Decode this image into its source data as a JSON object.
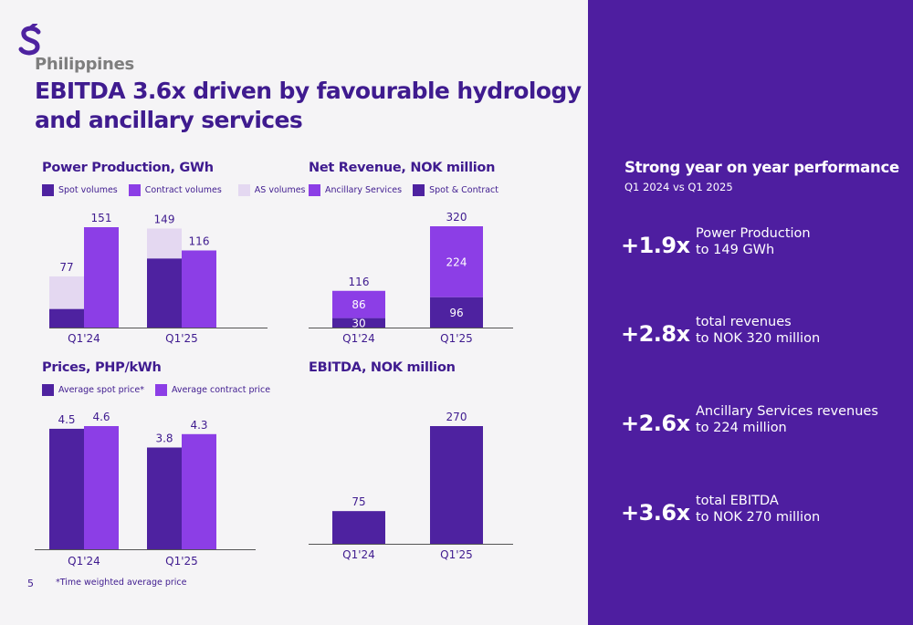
{
  "colors": {
    "dark_purple": "#4e22a0",
    "mid_purple": "#8c3ee6",
    "light_lavender": "#e4d8f1",
    "side_panel": "#4e1ea0",
    "text_dark": "#3f1b8f",
    "region_grey": "#7e7e7e"
  },
  "header": {
    "logo_icon": "swirl-s-logo",
    "region": "Philippines",
    "title": "EBITDA 3.6x driven by favourable hydrology and ancillary services"
  },
  "footer": {
    "page_number": "5",
    "footnote": "*Time weighted average price"
  },
  "side_panel": {
    "title": "Strong year on year performance",
    "subtitle": "Q1 2024 vs Q1 2025",
    "metrics": [
      {
        "multiplier": "+1.9x",
        "line1": "Power Production",
        "line2": "to 149 GWh"
      },
      {
        "multiplier": "+2.8x",
        "line1": "total revenues",
        "line2": "to NOK 320 million"
      },
      {
        "multiplier": "+2.6x",
        "line1": "Ancillary Services revenues",
        "line2": "to 224 million"
      },
      {
        "multiplier": "+3.6x",
        "line1": "total EBITDA",
        "line2": "to NOK 270 million"
      }
    ]
  },
  "chart_data": [
    {
      "id": "power",
      "type": "bar",
      "title": "Power Production, GWh",
      "categories": [
        "Q1'24",
        "Q1'25"
      ],
      "legend": [
        "Spot volumes",
        "Contract volumes",
        "AS volumes"
      ],
      "groups": [
        [
          {
            "stack": [
              {
                "series": 0,
                "value": 28
              },
              {
                "series": 2,
                "value": 49
              }
            ],
            "total_label": "77"
          },
          {
            "stack": [
              {
                "series": 1,
                "value": 151
              }
            ],
            "total_label": "151"
          }
        ],
        [
          {
            "stack": [
              {
                "series": 0,
                "value": 104
              },
              {
                "series": 2,
                "value": 45
              }
            ],
            "total_label": "149"
          },
          {
            "stack": [
              {
                "series": 1,
                "value": 116
              }
            ],
            "total_label": "116"
          }
        ]
      ],
      "ylim": [
        0,
        151
      ],
      "legend_placement": "top-left",
      "grid": false
    },
    {
      "id": "revenue",
      "type": "bar",
      "title": "Net Revenue, NOK million",
      "categories": [
        "Q1'24",
        "Q1'25"
      ],
      "legend": [
        "Ancillary Services",
        "Spot & Contract"
      ],
      "groups": [
        [
          {
            "stack": [
              {
                "series": 1,
                "value": 30,
                "label": "30"
              },
              {
                "series": 0,
                "value": 86,
                "label": "86"
              }
            ],
            "total_label": "116"
          }
        ],
        [
          {
            "stack": [
              {
                "series": 1,
                "value": 96,
                "label": "96"
              },
              {
                "series": 0,
                "value": 224,
                "label": "224"
              }
            ],
            "total_label": "320"
          }
        ]
      ],
      "ylim": [
        0,
        320
      ],
      "legend_placement": "top-left",
      "grid": false
    },
    {
      "id": "prices",
      "type": "bar",
      "title": "Prices, PHP/kWh",
      "categories": [
        "Q1'24",
        "Q1'25"
      ],
      "legend": [
        "Average spot price*",
        "Average contract price"
      ],
      "groups": [
        [
          {
            "stack": [
              {
                "series": 0,
                "value": 4.5
              }
            ],
            "total_label": "4.5"
          },
          {
            "stack": [
              {
                "series": 1,
                "value": 4.6
              }
            ],
            "total_label": "4.6"
          }
        ],
        [
          {
            "stack": [
              {
                "series": 0,
                "value": 3.8
              }
            ],
            "total_label": "3.8"
          },
          {
            "stack": [
              {
                "series": 1,
                "value": 4.3
              }
            ],
            "total_label": "4.3"
          }
        ]
      ],
      "ylim": [
        0,
        4.6
      ],
      "legend_placement": "top-left",
      "grid": false
    },
    {
      "id": "ebitda",
      "type": "bar",
      "title": "EBITDA, NOK million",
      "categories": [
        "Q1'24",
        "Q1'25"
      ],
      "legend": [],
      "groups": [
        [
          {
            "stack": [
              {
                "series": 0,
                "value": 75
              }
            ],
            "total_label": "75"
          }
        ],
        [
          {
            "stack": [
              {
                "series": 0,
                "value": 270
              }
            ],
            "total_label": "270"
          }
        ]
      ],
      "ylim": [
        0,
        270
      ],
      "grid": false
    }
  ]
}
